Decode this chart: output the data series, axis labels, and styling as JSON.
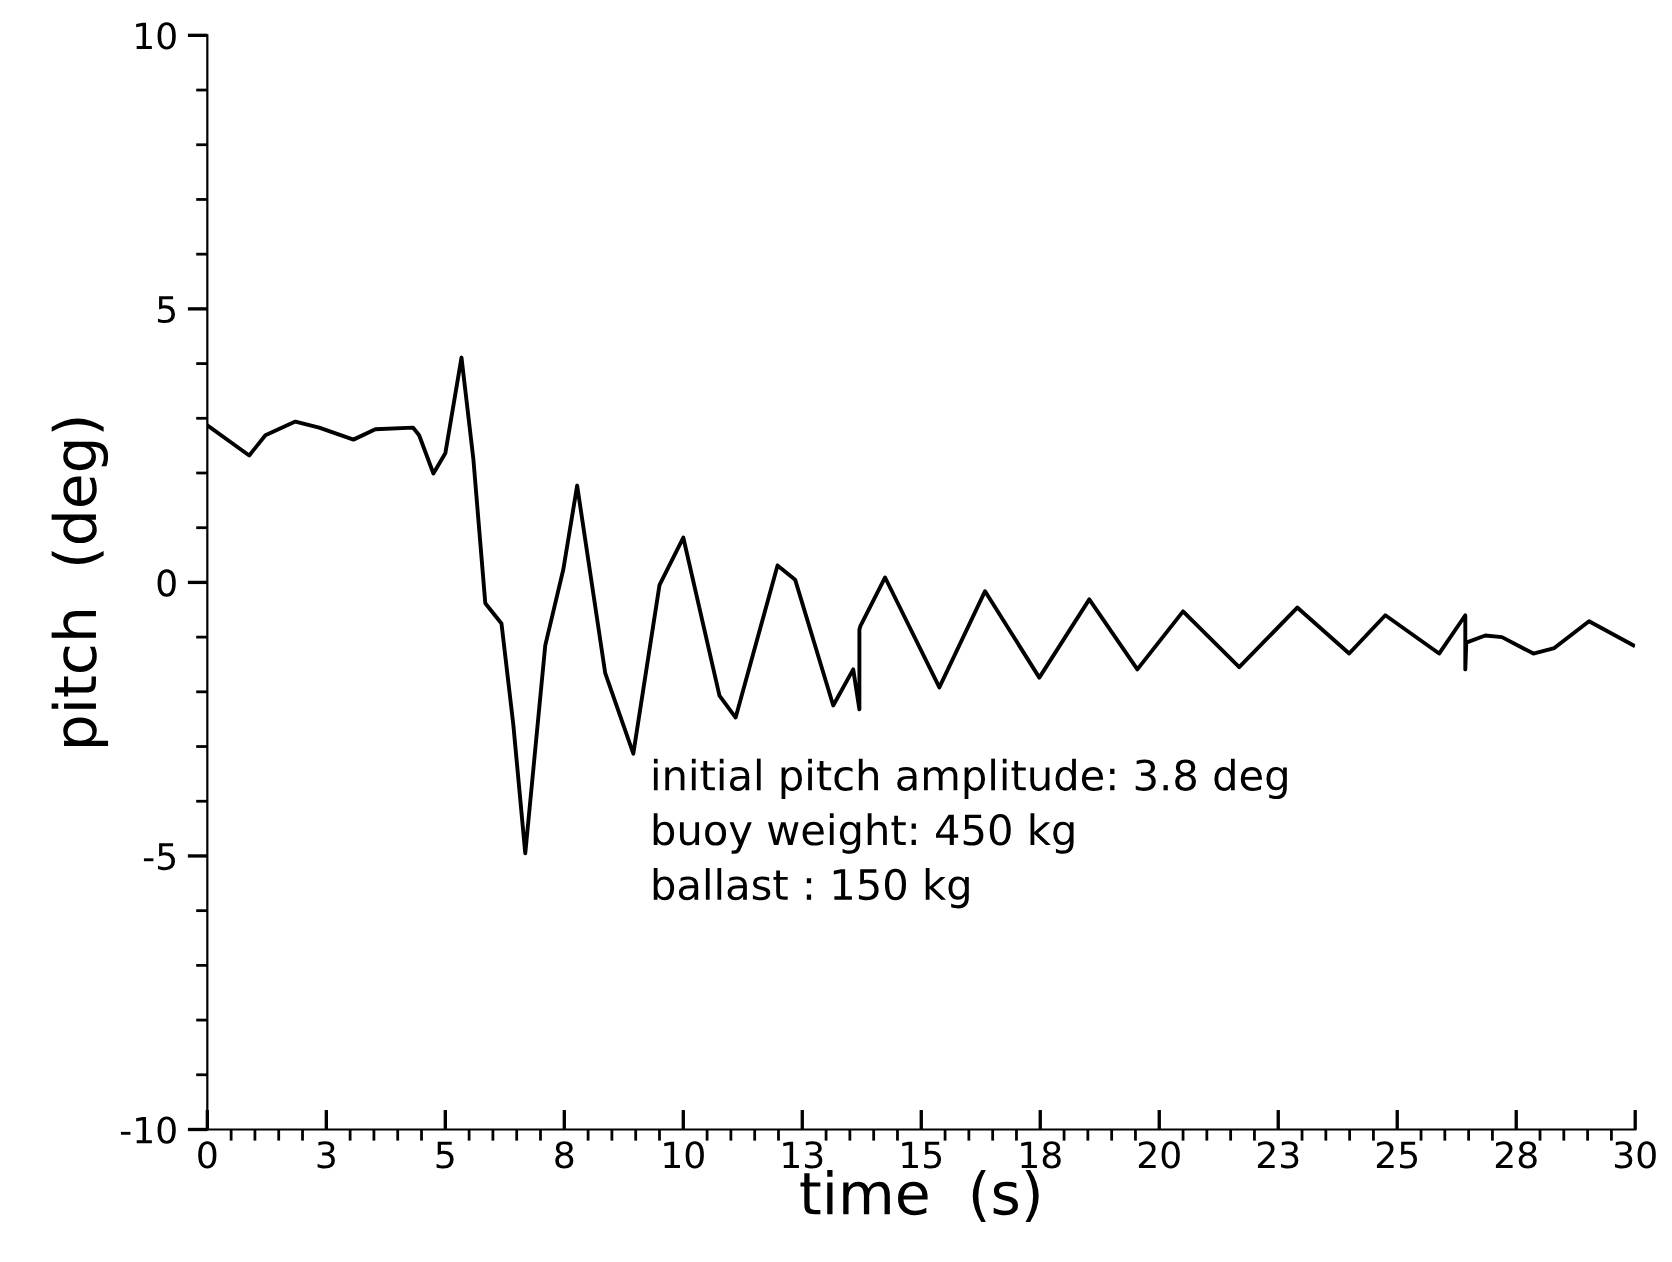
{
  "chart_data": {
    "type": "line",
    "xlabel": "time  (s)",
    "ylabel": "pitch  (deg)",
    "x": [
      0,
      0.88,
      1.22,
      1.85,
      2.35,
      3.07,
      3.53,
      4.32,
      4.45,
      4.75,
      5.0,
      5.34,
      5.59,
      5.84,
      6.18,
      6.43,
      6.68,
      7.1,
      7.48,
      7.77,
      8.36,
      8.95,
      9.5,
      10.0,
      10.76,
      11.1,
      11.98,
      12.35,
      13.15,
      13.57,
      13.7,
      13.7,
      13.72,
      14.24,
      15.38,
      16.34,
      17.48,
      18.53,
      19.54,
      20.5,
      21.68,
      22.9,
      23.99,
      24.75,
      25.88,
      26.43,
      26.43,
      26.45,
      26.85,
      27.2,
      27.86,
      28.3,
      29.03,
      29.96
    ],
    "values": [
      2.87,
      2.32,
      2.69,
      2.94,
      2.83,
      2.61,
      2.8,
      2.83,
      2.69,
      1.99,
      2.36,
      4.11,
      2.25,
      -0.38,
      -0.75,
      -2.61,
      -4.95,
      -1.15,
      0.24,
      1.77,
      -1.66,
      -3.13,
      -0.05,
      0.82,
      -2.07,
      -2.47,
      0.31,
      0.05,
      -2.25,
      -1.59,
      -2.32,
      -0.86,
      -0.8,
      0.09,
      -1.92,
      -0.16,
      -1.74,
      -0.31,
      -1.59,
      -0.53,
      -1.55,
      -0.46,
      -1.3,
      -0.6,
      -1.3,
      -0.6,
      -1.59,
      -1.1,
      -0.97,
      -1.0,
      -1.3,
      -1.2,
      -0.71,
      -1.15
    ],
    "color": "#000000",
    "marker": "none",
    "line_style": "solid",
    "grid": false,
    "legend": false,
    "xlim": [
      0,
      30
    ],
    "ylim": [
      -10,
      10
    ],
    "xticks": [
      0,
      {
        "value": 2.5,
        "label": "3"
      },
      5,
      {
        "value": 7.5,
        "label": "8"
      },
      10,
      {
        "value": 12.5,
        "label": "13"
      },
      15,
      {
        "value": 17.5,
        "label": "18"
      },
      20,
      {
        "value": 22.5,
        "label": "23"
      },
      25,
      {
        "value": 27.5,
        "label": "28"
      },
      30
    ],
    "yticks": [
      -10,
      -5,
      0,
      5,
      10
    ],
    "annotations": [
      "initial pitch amplitude: 3.8 deg",
      "buoy weight: 450 kg",
      "ballast : 150 kg"
    ]
  }
}
